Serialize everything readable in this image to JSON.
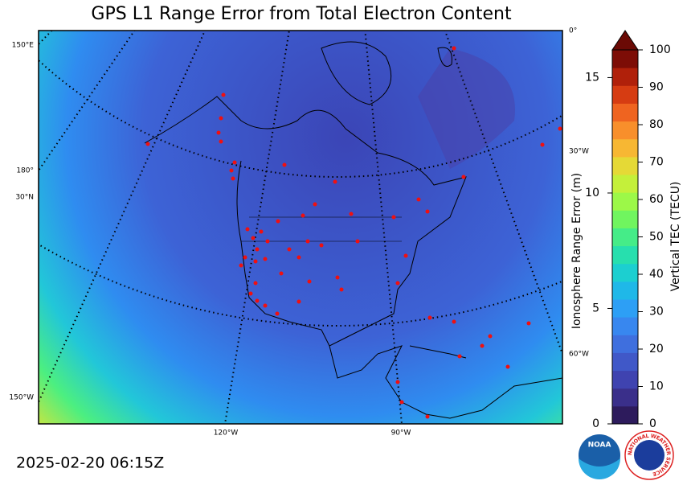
{
  "title": "GPS L1 Range Error from Total Electron Content",
  "timestamp": "2025-02-20 06:15Z",
  "map": {
    "graticule_labels": [
      "150°E",
      "180°",
      "30°N",
      "150°W",
      "120°W",
      "90°W",
      "0°",
      "30°W",
      "60°W"
    ]
  },
  "colorbar": {
    "left_label": "Ionosphere Range Error (m)",
    "right_label": "Vertical TEC (TECU)",
    "left_lim": [
      0,
      16.2
    ],
    "left_ticks": [
      0,
      5,
      10,
      15
    ],
    "right_lim": [
      0,
      100
    ],
    "right_ticks": [
      0,
      10,
      20,
      30,
      40,
      50,
      60,
      70,
      80,
      90,
      100
    ],
    "colors": [
      "#2d1b5c",
      "#3a2f8a",
      "#3f43b0",
      "#4058c8",
      "#3f6fde",
      "#3887ef",
      "#2d9ff5",
      "#1fb8e8",
      "#1ccfd0",
      "#27dfae",
      "#45ec88",
      "#70f55f",
      "#9cf848",
      "#c4f03a",
      "#e5d936",
      "#f7b733",
      "#f88f2b",
      "#ef6420",
      "#d63c12",
      "#b0200a",
      "#7d0d06"
    ],
    "extend_color": "#6b0a05"
  },
  "logos": [
    "NOAA",
    "NATIONAL WEATHER SERVICE"
  ]
}
